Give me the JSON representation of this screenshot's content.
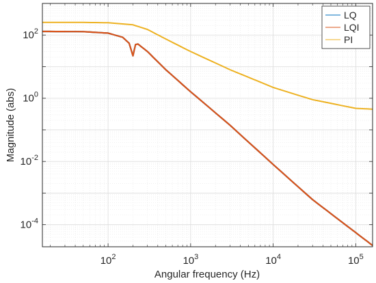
{
  "chart_data": {
    "type": "line",
    "xscale": "log",
    "yscale": "log",
    "xlabel": "Angular frequency  (Hz)",
    "ylabel": "Magnitude (abs)",
    "xlim": [
      16,
      160000
    ],
    "ylim": [
      2e-05,
      1000
    ],
    "xticks": [
      {
        "value": 100,
        "base": "10",
        "exp": "2"
      },
      {
        "value": 1000,
        "base": "10",
        "exp": "3"
      },
      {
        "value": 10000,
        "base": "10",
        "exp": "4"
      },
      {
        "value": 100000,
        "base": "10",
        "exp": "5"
      }
    ],
    "yticks": [
      {
        "value": 0.0001,
        "base": "10",
        "exp": "-4"
      },
      {
        "value": 0.01,
        "base": "10",
        "exp": "-2"
      },
      {
        "value": 1,
        "base": "10",
        "exp": "0"
      },
      {
        "value": 100,
        "base": "10",
        "exp": "2"
      }
    ],
    "grid": true,
    "minor_grid": true,
    "legend_position": "top-right",
    "series": [
      {
        "name": "LQ",
        "color": "#0072BD",
        "x": [
          16,
          50,
          100,
          150,
          180,
          200,
          215,
          230,
          300,
          500,
          1000,
          3000,
          10000,
          30000,
          100000,
          160000
        ],
        "y": [
          130,
          128,
          115,
          85,
          55,
          22,
          50,
          52,
          30,
          8,
          1.6,
          0.14,
          0.008,
          0.00062,
          5.6e-05,
          2.2e-05
        ]
      },
      {
        "name": "LQI",
        "color": "#D95319",
        "x": [
          16,
          50,
          100,
          150,
          180,
          200,
          215,
          230,
          300,
          500,
          1000,
          3000,
          10000,
          30000,
          100000,
          160000
        ],
        "y": [
          130,
          128,
          115,
          85,
          55,
          22,
          50,
          52,
          30,
          8,
          1.6,
          0.14,
          0.008,
          0.00062,
          5.6e-05,
          2.2e-05
        ]
      },
      {
        "name": "PI",
        "color": "#EDB120",
        "x": [
          16,
          50,
          100,
          200,
          300,
          500,
          1000,
          3000,
          10000,
          30000,
          100000,
          160000
        ],
        "y": [
          250,
          250,
          245,
          210,
          150,
          75,
          30,
          8,
          2.2,
          0.9,
          0.48,
          0.45
        ]
      }
    ]
  }
}
